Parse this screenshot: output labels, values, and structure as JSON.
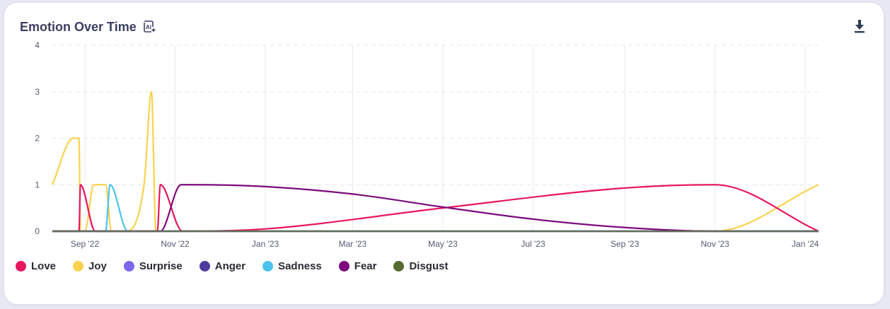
{
  "title": "Emotion Over Time",
  "icons": {
    "ai": "ai-sparkle-icon",
    "download": "download-icon"
  },
  "chart_data": {
    "type": "line",
    "title": "Emotion Over Time",
    "xlabel": "",
    "ylabel": "",
    "ylim": [
      0,
      4
    ],
    "yticks": [
      0,
      1,
      2,
      3,
      4
    ],
    "xlim": [
      "2022-08-10",
      "2024-01-10"
    ],
    "xticks": [
      {
        "label": "Sep '22",
        "date": "2022-09-01"
      },
      {
        "label": "Nov '22",
        "date": "2022-11-01"
      },
      {
        "label": "Jan '23",
        "date": "2023-01-01"
      },
      {
        "label": "Mar '23",
        "date": "2023-03-01"
      },
      {
        "label": "May '23",
        "date": "2023-05-01"
      },
      {
        "label": "Jul '23",
        "date": "2023-07-01"
      },
      {
        "label": "Sep '23",
        "date": "2023-09-01"
      },
      {
        "label": "Nov '23",
        "date": "2023-11-01"
      },
      {
        "label": "Jan '24",
        "date": "2024-01-01"
      }
    ],
    "grid": true,
    "legend_position": "bottom-left",
    "series": [
      {
        "name": "Love",
        "color": "#e8175d",
        "points": [
          [
            "2022-08-10",
            0
          ],
          [
            "2022-08-25",
            0
          ],
          [
            "2022-08-28",
            0
          ],
          [
            "2022-08-29",
            1
          ],
          [
            "2022-09-08",
            0
          ],
          [
            "2022-10-15",
            0
          ],
          [
            "2022-10-20",
            0
          ],
          [
            "2022-10-22",
            1
          ],
          [
            "2022-11-06",
            0
          ],
          [
            "2023-01-01",
            0.05
          ],
          [
            "2023-05-01",
            0.5
          ],
          [
            "2023-09-01",
            0.93
          ],
          [
            "2023-11-01",
            1
          ],
          [
            "2024-01-10",
            0
          ]
        ]
      },
      {
        "name": "Joy",
        "color": "#fad24e",
        "points": [
          [
            "2022-08-10",
            1
          ],
          [
            "2022-08-24",
            2
          ],
          [
            "2022-08-28",
            2
          ],
          [
            "2022-08-29",
            0
          ],
          [
            "2022-09-01",
            0
          ],
          [
            "2022-09-07",
            1
          ],
          [
            "2022-09-15",
            1
          ],
          [
            "2022-09-19",
            0
          ],
          [
            "2022-09-28",
            0
          ],
          [
            "2022-10-11",
            1
          ],
          [
            "2022-10-16",
            3
          ],
          [
            "2022-10-19",
            0
          ],
          [
            "2023-10-20",
            0
          ],
          [
            "2023-11-01",
            0
          ],
          [
            "2024-01-10",
            1
          ]
        ]
      },
      {
        "name": "Surprise",
        "color": "#7b68ee",
        "points": [
          [
            "2022-08-10",
            0
          ],
          [
            "2024-01-10",
            0
          ]
        ]
      },
      {
        "name": "Anger",
        "color": "#4e3d9c",
        "points": [
          [
            "2022-08-10",
            0
          ],
          [
            "2024-01-10",
            0
          ]
        ]
      },
      {
        "name": "Sadness",
        "color": "#4ac4ec",
        "points": [
          [
            "2022-08-10",
            0
          ],
          [
            "2022-09-15",
            0
          ],
          [
            "2022-09-18",
            1
          ],
          [
            "2022-09-30",
            0
          ],
          [
            "2024-01-10",
            0
          ]
        ]
      },
      {
        "name": "Fear",
        "color": "#7d0a7d",
        "points": [
          [
            "2022-08-10",
            0
          ],
          [
            "2022-10-18",
            0
          ],
          [
            "2022-10-22",
            0
          ],
          [
            "2022-11-05",
            1
          ],
          [
            "2022-11-12",
            1
          ],
          [
            "2023-01-01",
            0.96
          ],
          [
            "2023-03-01",
            0.8
          ],
          [
            "2023-05-01",
            0.52
          ],
          [
            "2023-07-01",
            0.26
          ],
          [
            "2023-09-01",
            0.08
          ],
          [
            "2023-11-01",
            0
          ],
          [
            "2024-01-10",
            0
          ]
        ]
      },
      {
        "name": "Disgust",
        "color": "#556b2f",
        "points": [
          [
            "2022-08-10",
            0
          ],
          [
            "2024-01-10",
            0
          ]
        ]
      }
    ]
  }
}
